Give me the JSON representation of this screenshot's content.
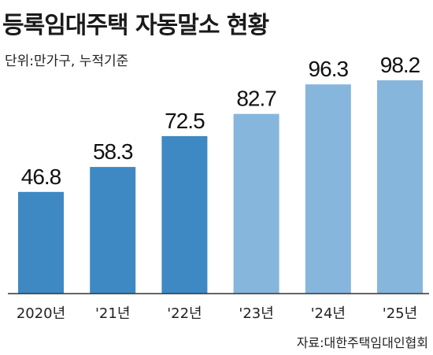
{
  "chart_data": {
    "type": "bar",
    "title": "등록임대주택 자동말소 현황",
    "unit": "단위:만가구, 누적기준",
    "categories": [
      "2020년",
      "'21년",
      "'22년",
      "'23년",
      "'24년",
      "'25년"
    ],
    "values": [
      46.8,
      58.3,
      72.5,
      82.7,
      96.3,
      98.2
    ],
    "value_labels": [
      "46.8",
      "58.3",
      "72.5",
      "82.7",
      "96.3",
      "98.2"
    ],
    "xlabel": "",
    "ylabel": "",
    "ylim": [
      0,
      100
    ],
    "grid": false,
    "source": "자료:대한주택임대인협회",
    "colors": {
      "dark": "#3e89c3",
      "light": "#87b6dc",
      "baseline": "#333333"
    },
    "bar_color_keys": [
      "dark",
      "dark",
      "dark",
      "light",
      "light",
      "light"
    ]
  }
}
